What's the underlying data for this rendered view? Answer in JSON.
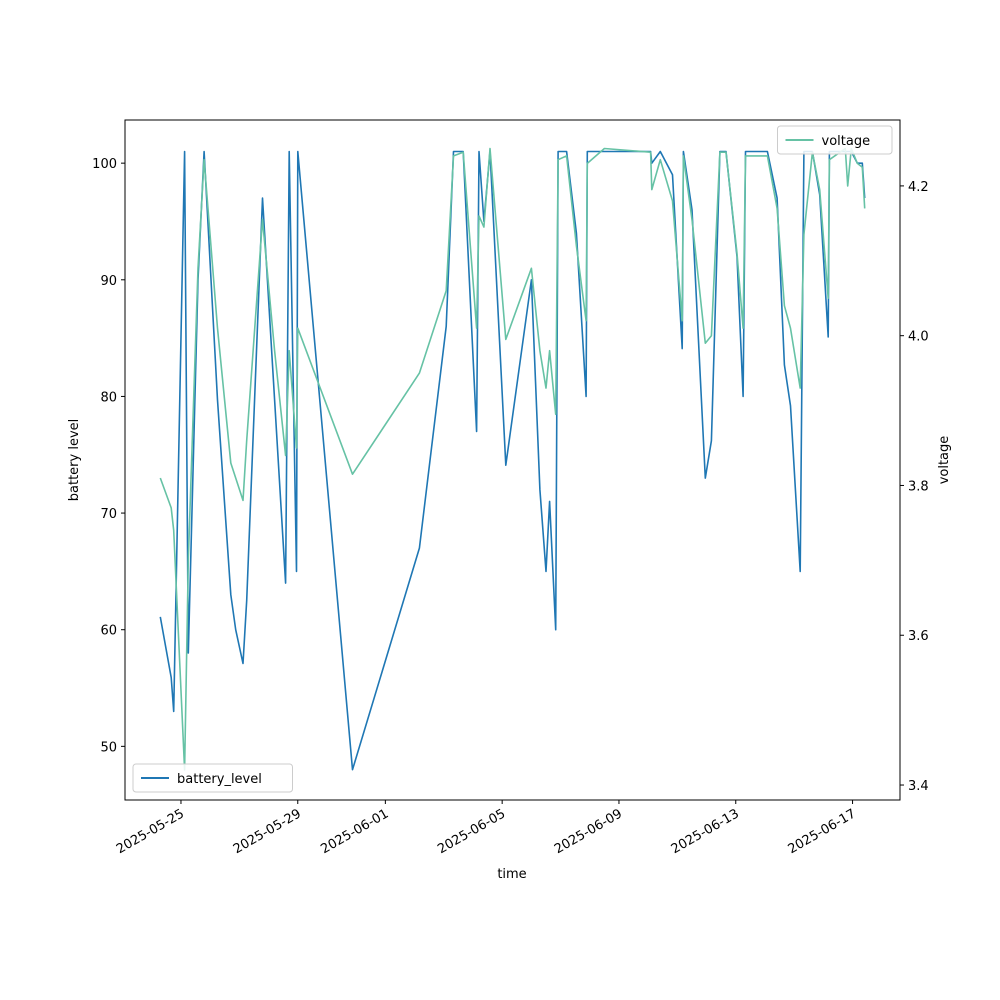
{
  "chart_data": {
    "type": "line",
    "xlabel": "time",
    "ylabel": "battery level",
    "y2label": "voltage",
    "x": [
      "2025-05-24T07:00",
      "2025-05-24T16:00",
      "2025-05-24T18:00",
      "2025-05-25T03:00",
      "2025-05-25T06:00",
      "2025-05-25T14:00",
      "2025-05-25T19:00",
      "2025-05-26T06:00",
      "2025-05-26T17:00",
      "2025-05-26T21:00",
      "2025-05-27T03:00",
      "2025-05-27T06:00",
      "2025-05-27T19:00",
      "2025-05-28T05:00",
      "2025-05-28T14:00",
      "2025-05-28T17:00",
      "2025-05-28T23:00",
      "2025-05-29T00:00",
      "2025-05-30T21:00",
      "2025-06-02T04:00",
      "2025-06-03T02:00",
      "2025-06-03T08:00",
      "2025-06-03T16:00",
      "2025-06-04T03:00",
      "2025-06-04T05:00",
      "2025-06-04T09:00",
      "2025-06-04T14:00",
      "2025-06-05T03:00",
      "2025-06-06T00:00",
      "2025-06-06T07:00",
      "2025-06-06T12:00",
      "2025-06-06T15:00",
      "2025-06-06T20:00",
      "2025-06-06T22:00",
      "2025-06-07T05:00",
      "2025-06-07T13:00",
      "2025-06-07T21:00",
      "2025-06-07T22:00",
      "2025-06-08T12:00",
      "2025-06-10T02:00",
      "2025-06-10T03:00",
      "2025-06-10T10:00",
      "2025-06-10T20:00",
      "2025-06-11T04:00",
      "2025-06-11T05:00",
      "2025-06-11T12:00",
      "2025-06-11T23:00",
      "2025-06-12T04:00",
      "2025-06-12T11:00",
      "2025-06-12T16:00",
      "2025-06-13T01:00",
      "2025-06-13T06:00",
      "2025-06-13T08:00",
      "2025-06-14T02:00",
      "2025-06-14T10:00",
      "2025-06-14T16:00",
      "2025-06-14T21:00",
      "2025-06-15T05:00",
      "2025-06-15T08:00",
      "2025-06-15T15:00",
      "2025-06-15T21:00",
      "2025-06-16T04:00",
      "2025-06-16T05:00",
      "2025-06-16T18:00",
      "2025-06-16T20:00",
      "2025-06-16T23:00",
      "2025-06-17T04:00",
      "2025-06-17T08:00",
      "2025-06-17T10:00"
    ],
    "series": [
      {
        "name": "battery_level",
        "color": "#1f77b4",
        "axis": "y",
        "values": [
          61.1,
          55.9,
          53,
          101,
          58,
          90,
          101,
          79.7,
          63,
          60,
          57.1,
          62.5,
          97,
          79.7,
          64,
          101,
          65,
          101,
          48,
          67,
          86,
          101,
          101,
          77,
          101,
          95,
          101,
          74.1,
          90,
          72,
          65,
          71,
          60,
          101,
          101,
          94,
          80,
          101,
          101,
          101,
          100,
          101,
          99,
          84.1,
          101,
          96,
          73,
          76.2,
          101,
          101,
          92,
          80,
          101,
          101,
          97,
          82.7,
          79.2,
          65,
          101,
          101,
          97.3,
          85.1,
          101,
          101,
          101,
          101,
          100,
          100,
          97
        ]
      },
      {
        "name": "voltage",
        "color": "#66c2a5",
        "axis": "y2",
        "values": [
          3.81,
          3.77,
          3.74,
          3.42,
          3.7,
          4.09,
          4.235,
          4.01,
          3.83,
          3.81,
          3.78,
          3.86,
          4.155,
          3.98,
          3.84,
          3.98,
          3.85,
          4.01,
          3.815,
          3.95,
          4.06,
          4.24,
          4.245,
          4.01,
          4.16,
          4.145,
          4.25,
          3.995,
          4.09,
          3.98,
          3.93,
          3.98,
          3.895,
          4.235,
          4.24,
          4.12,
          4.02,
          4.23,
          4.25,
          4.245,
          4.195,
          4.235,
          4.18,
          4.02,
          4.24,
          4.155,
          3.99,
          4.0,
          4.245,
          4.245,
          4.11,
          4.01,
          4.24,
          4.24,
          4.17,
          4.04,
          4.01,
          3.93,
          4.135,
          4.245,
          4.195,
          4.05,
          4.235,
          4.25,
          4.2,
          4.25,
          4.23,
          4.225,
          4.17
        ]
      }
    ],
    "xlim": [
      "2025-05-23T02:00",
      "2025-06-18T15:00"
    ],
    "xticks": [
      "2025-05-25",
      "2025-05-29",
      "2025-06-01",
      "2025-06-05",
      "2025-06-09",
      "2025-06-13",
      "2025-06-17"
    ],
    "ylim": [
      45.4,
      103.7
    ],
    "yticks": [
      50,
      60,
      70,
      80,
      90,
      100
    ],
    "y2lim": [
      3.38,
      4.288
    ],
    "y2ticks": [
      3.4,
      3.6,
      3.8,
      {
        "value": 4,
        "label": "4.0"
      },
      4.2
    ],
    "legend": {
      "battery_level": "lower left",
      "voltage": "upper right"
    }
  }
}
